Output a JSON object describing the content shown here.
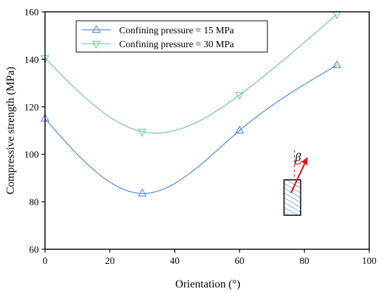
{
  "chart_data": {
    "type": "line",
    "xlabel": "Orientation (°)",
    "ylabel": "Compressive strength (MPa)",
    "xlim": [
      0,
      100
    ],
    "ylim": [
      60,
      160
    ],
    "xticks": [
      0,
      20,
      40,
      60,
      80,
      100
    ],
    "yticks": [
      60,
      80,
      100,
      120,
      140,
      160
    ],
    "grid": false,
    "legend_position": "top-left",
    "series": [
      {
        "name": "Confining pressure = 15 MPa",
        "marker": "triangle-up",
        "color": "#5b8fd6",
        "x": [
          0,
          30,
          60,
          90
        ],
        "y": [
          115,
          83.5,
          110,
          137.5
        ]
      },
      {
        "name": "Confining pressure = 30 MPa",
        "marker": "triangle-down",
        "color": "#79c9a0",
        "x": [
          0,
          30,
          60,
          90
        ],
        "y": [
          140.5,
          109.5,
          125,
          159
        ]
      }
    ],
    "inset": {
      "symbol": "β",
      "arrow_color": "#e8141c",
      "specimen_hatch_color": "#4a7fc8"
    }
  }
}
